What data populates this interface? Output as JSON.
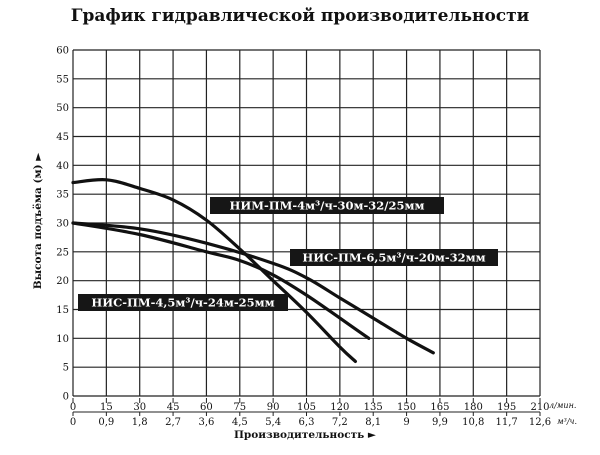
{
  "chart_data": {
    "type": "line",
    "title": "График гидравлической производительности",
    "ylabel": "Высота подъёма (м) ►",
    "xlabel": "Производительность ►",
    "ylim": [
      0,
      60
    ],
    "yticks": [
      "0",
      "5",
      "10",
      "15",
      "20",
      "25",
      "30",
      "35",
      "40",
      "45",
      "50",
      "55",
      "60"
    ],
    "xlim": [
      0,
      210
    ],
    "xticks_lmin": [
      "0",
      "15",
      "30",
      "45",
      "60",
      "75",
      "90",
      "105",
      "120",
      "135",
      "150",
      "165",
      "180",
      "195",
      "210"
    ],
    "xticks_m3h": [
      "0",
      "0,9",
      "1,8",
      "2,7",
      "3,6",
      "4,5",
      "5,4",
      "6,3",
      "7,2",
      "8,1",
      "9",
      "9,9",
      "10,8",
      "11,7",
      "12,6"
    ],
    "x_unit_top": "л/мин.",
    "x_unit_bottom": "м³/ч.",
    "grid": true,
    "series": [
      {
        "name": "НИМ-ПМ-4м³/ч-30м-32/25мм",
        "x": [
          0,
          15,
          30,
          45,
          60,
          75,
          90,
          105,
          120,
          127
        ],
        "y": [
          37,
          37.5,
          36,
          34,
          30.5,
          25.5,
          20,
          14.5,
          8.5,
          6
        ]
      },
      {
        "name": "НИС-ПМ-6,5м³/ч-20м-32мм",
        "x": [
          0,
          30,
          60,
          90,
          105,
          120,
          135,
          150,
          162
        ],
        "y": [
          30,
          29,
          26.5,
          23,
          20.5,
          17,
          13.5,
          10,
          7.5
        ]
      },
      {
        "name": "НИС-ПМ-4,5м³/ч-24м-25мм",
        "x": [
          0,
          30,
          60,
          75,
          90,
          105,
          120,
          133
        ],
        "y": [
          30,
          28,
          25,
          23.5,
          21,
          17.5,
          13.5,
          10
        ]
      }
    ]
  }
}
